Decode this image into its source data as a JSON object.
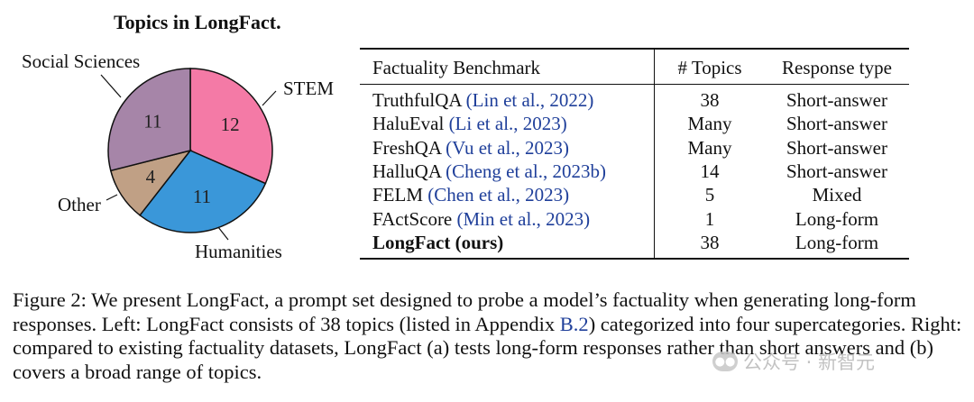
{
  "pie": {
    "title": "Topics in LongFact."
  },
  "chart_data": {
    "type": "pie",
    "title": "Topics in LongFact.",
    "slices": [
      {
        "label": "STEM",
        "value": 12,
        "color": "#f47aa6"
      },
      {
        "label": "Humanities",
        "value": 11,
        "color": "#3a97d9"
      },
      {
        "label": "Other",
        "value": 4,
        "color": "#c0a085"
      },
      {
        "label": "Social Sciences",
        "value": 11,
        "color": "#a685a8"
      }
    ]
  },
  "table": {
    "headers": [
      "Factuality Benchmark",
      "# Topics",
      "Response type"
    ],
    "rows": [
      {
        "name": "TruthfulQA",
        "cite": "(Lin et al., 2022)",
        "topics": "38",
        "type": "Short-answer"
      },
      {
        "name": "HaluEval",
        "cite": "(Li et al., 2023)",
        "topics": "Many",
        "type": "Short-answer"
      },
      {
        "name": "FreshQA",
        "cite": "(Vu et al., 2023)",
        "topics": "Many",
        "type": "Short-answer"
      },
      {
        "name": "HalluQA",
        "cite": "(Cheng et al., 2023b)",
        "topics": "14",
        "type": "Short-answer"
      },
      {
        "name": "FELM",
        "cite": "(Chen et al., 2023)",
        "topics": "5",
        "type": "Mixed"
      },
      {
        "name": "FActScore",
        "cite": "(Min et al., 2023)",
        "topics": "1",
        "type": "Long-form"
      }
    ],
    "last_row": {
      "name": "LongFact (ours)",
      "topics": "38",
      "type": "Long-form"
    }
  },
  "caption": {
    "part1": "Figure 2: We present LongFact, a prompt set designed to probe a model’s factuality when generating long-form responses. Left: LongFact consists of 38 topics (listed in Appendix ",
    "link": "B.2",
    "part2": ") categorized into four supercategories. Right: compared to existing factuality datasets, LongFact (a) tests long-form responses rather than short answers and (b) covers a broad range of topics."
  },
  "watermark": {
    "text": "公众号 · 新智元",
    "icon": "wechat-icon"
  }
}
